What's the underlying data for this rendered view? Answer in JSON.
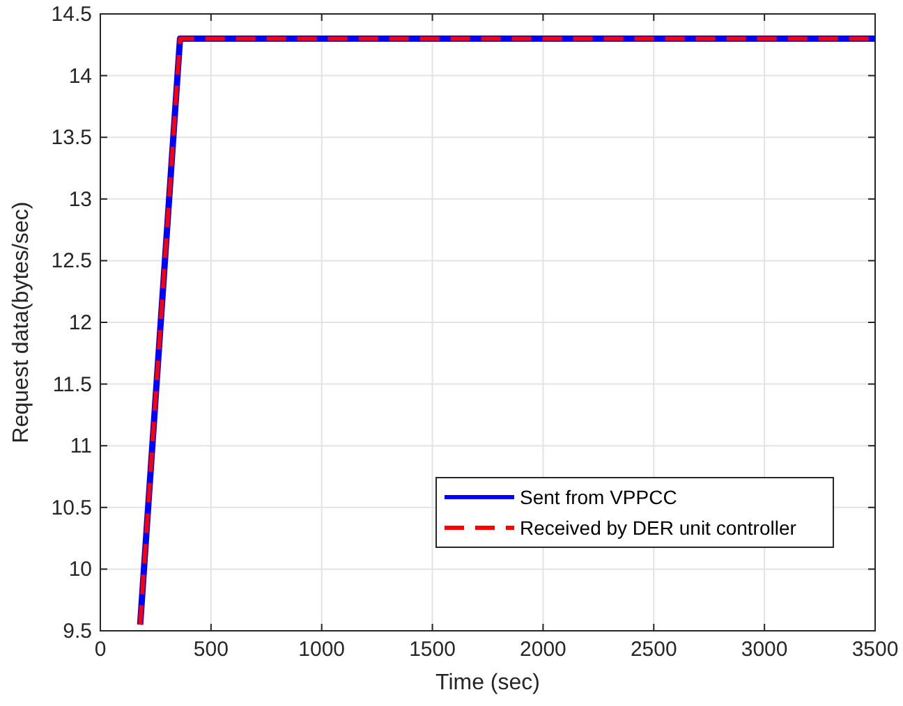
{
  "chart_data": {
    "type": "line",
    "xlabel": "Time (sec)",
    "ylabel": "Request data(bytes/sec)",
    "xlim": [
      0,
      3500
    ],
    "ylim": [
      9.5,
      14.5
    ],
    "xticks": [
      0,
      500,
      1000,
      1500,
      2000,
      2500,
      3000,
      3500
    ],
    "yticks": [
      9.5,
      10,
      10.5,
      11,
      11.5,
      12,
      12.5,
      13,
      13.5,
      14,
      14.5
    ],
    "grid": true,
    "legend": "bottom right",
    "series": [
      {
        "name": "Sent from VPPCC",
        "color": "#0000ff",
        "x": [
          180,
          360,
          3500
        ],
        "values": [
          9.55,
          14.3,
          14.3
        ],
        "line_style": "solid"
      },
      {
        "name": "Received by DER unit controller",
        "color": "#ff0000",
        "x": [
          180,
          360,
          3500
        ],
        "values": [
          9.55,
          14.3,
          14.3
        ],
        "line_style": "dashed"
      }
    ]
  }
}
